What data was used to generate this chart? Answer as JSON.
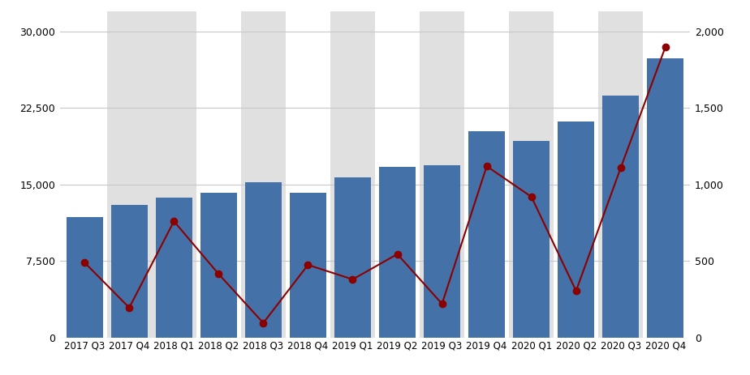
{
  "categories": [
    "2017 Q3",
    "2017 Q4",
    "2018 Q1",
    "2018 Q2",
    "2018 Q3",
    "2018 Q4",
    "2019 Q1",
    "2019 Q2",
    "2019 Q3",
    "2019 Q4",
    "2020 Q1",
    "2020 Q2",
    "2020 Q3",
    "2020 Q4"
  ],
  "bar_values": [
    11800,
    13000,
    13700,
    14200,
    15200,
    14200,
    15700,
    16700,
    16900,
    20200,
    19300,
    21200,
    23700,
    27400
  ],
  "line_values": [
    490,
    195,
    760,
    415,
    95,
    475,
    380,
    545,
    220,
    1120,
    920,
    305,
    1110,
    1900
  ],
  "bar_color": "#4472a8",
  "line_color": "#8b0000",
  "bg_color": "#ffffff",
  "stripe_color": "#e0e0e0",
  "ylim_left": [
    0,
    32000
  ],
  "ylim_right": [
    0,
    2133
  ],
  "yticks_left": [
    0,
    7500,
    15000,
    22500,
    30000
  ],
  "yticks_right": [
    0,
    500,
    1000,
    1500,
    2000
  ],
  "grid_color": "#c8c8c8"
}
